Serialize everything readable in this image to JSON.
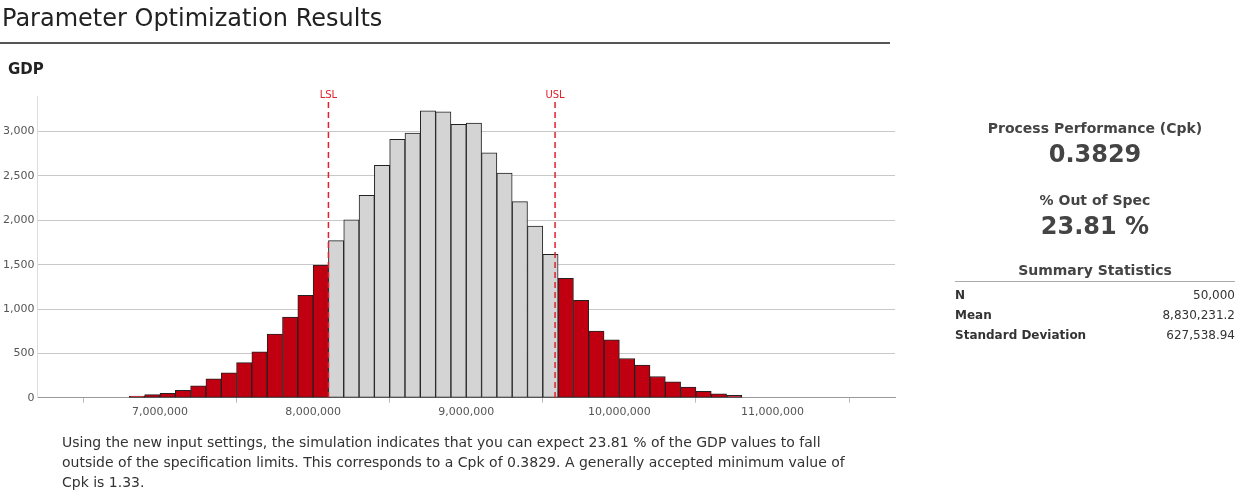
{
  "chart_data": {
    "type": "histogram",
    "title": "Parameter Optimization Results",
    "subtitle": "GDP",
    "bins": [
      6300000,
      6400000,
      6500000,
      6600000,
      6700000,
      6800000,
      6900000,
      7000000,
      7100000,
      7200000,
      7300000,
      7400000,
      7500000,
      7600000,
      7700000,
      7800000,
      7900000,
      8000000,
      8100000,
      8200000,
      8300000,
      8400000,
      8500000,
      8600000,
      8700000,
      8800000,
      8900000,
      9000000,
      9100000,
      9200000,
      9300000,
      9400000,
      9500000,
      9600000,
      9700000,
      9800000,
      9900000,
      10000000,
      10100000,
      10200000,
      10300000,
      10400000,
      10500000,
      10600000,
      10700000,
      10800000,
      10900000,
      11000000,
      11100000,
      11200000,
      11300000,
      11400000,
      11500000,
      11600000,
      11700000
    ],
    "values": [
      null,
      null,
      null,
      null,
      null,
      20,
      35,
      50,
      84,
      134,
      214,
      282,
      397,
      519,
      718,
      908,
      1153,
      1496,
      1771,
      2004,
      2282,
      2618,
      2912,
      2981,
      3233,
      3221,
      3080,
      3095,
      2760,
      2531,
      2210,
      1935,
      1615,
      1347,
      1099,
      752,
      653,
      443,
      370,
      240,
      179,
      122,
      73,
      46,
      27,
      null,
      null,
      null,
      null,
      null,
      null,
      null,
      null,
      null
    ],
    "colors": [
      "#c00010",
      "#c00010",
      "#c00010",
      "#c00010",
      "#c00010",
      "#c00010",
      "#c00010",
      "#c00010",
      "#c00010",
      "#c00010",
      "#c00010",
      "#c00010",
      "#c00010",
      "#c00010",
      "#c00010",
      "#c00010",
      "#c00010",
      "#c00010",
      "#d4d4d4",
      "#d4d4d4",
      "#d4d4d4",
      "#d4d4d4",
      "#d4d4d4",
      "#d4d4d4",
      "#d4d4d4",
      "#d4d4d4",
      "#d4d4d4",
      "#d4d4d4",
      "#d4d4d4",
      "#d4d4d4",
      "#d4d4d4",
      "#d4d4d4",
      "#d4d4d4",
      "#c00010",
      "#c00010",
      "#c00010",
      "#c00010",
      "#c00010",
      "#c00010",
      "#c00010",
      "#c00010",
      "#c00010",
      "#c00010",
      "#c00010",
      "#c00010",
      "#c00010",
      "#c00010",
      "#c00010",
      "#c00010",
      "#c00010",
      "#c00010",
      "#c00010",
      "#c00010",
      "#c00010"
    ],
    "xlim": [
      6200000,
      11800000
    ],
    "xticks": [
      {
        "value": 7000000,
        "label": "7,000,000"
      },
      {
        "value": 8000000,
        "label": "8,000,000"
      },
      {
        "value": 9000000,
        "label": "9,000,000"
      },
      {
        "value": 10000000,
        "label": "10,000,000"
      },
      {
        "value": 11000000,
        "label": "11,000,000"
      }
    ],
    "ylim": [
      0,
      3400
    ],
    "yticks": [
      {
        "value": 0,
        "label": "0"
      },
      {
        "value": 500,
        "label": "500"
      },
      {
        "value": 1000,
        "label": "1,000"
      },
      {
        "value": 1500,
        "label": "1,500"
      },
      {
        "value": 2000,
        "label": "2,000"
      },
      {
        "value": 2500,
        "label": "2,500"
      },
      {
        "value": 3000,
        "label": "3,000"
      }
    ],
    "grid": "y",
    "ref_lines": [
      {
        "axis": "x",
        "value": 8100000,
        "label": "LSL",
        "color": "#e0202a",
        "line_style": "dashed"
      },
      {
        "axis": "x",
        "value": 9580000,
        "label": "USL",
        "color": "#e0202a",
        "line_style": "dashed"
      }
    ],
    "annotations": [
      "Process Performance (Cpk)",
      "0.3829",
      "% Out of Spec",
      "23.81 %",
      "Summary Statistics",
      "N",
      "50,000",
      "Mean",
      "8,830,231.2",
      "Standard Deviation",
      "627,538.94",
      "Using the new input settings, the simulation indicates that you can expect 23.81 % of the GDP values to fall outside of the specification limits. This corresponds to a Cpk of 0.3829. A generally accepted minimum value of Cpk is 1.33."
    ]
  }
}
